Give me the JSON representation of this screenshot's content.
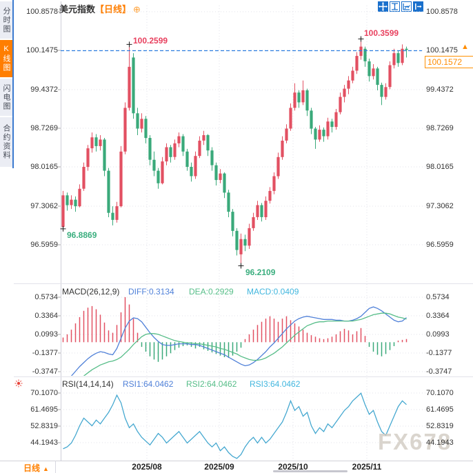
{
  "header": {
    "title": "美元指数",
    "period": "【日线】"
  },
  "icons": {
    "add": "⊕",
    "up_arrow": "▲",
    "period_arrow": "▲",
    "toolbar": [
      "crosshair-move-icon",
      "fit-vertical-icon",
      "fit-horizontal-icon",
      "export-icon"
    ],
    "indicator_settings": "sun-icon"
  },
  "sidebar": {
    "tabs": [
      {
        "label": "分时图",
        "active": false
      },
      {
        "label": "K线图",
        "active": true
      },
      {
        "label": "闪电图",
        "active": false
      },
      {
        "label": "合约资料",
        "active": false
      }
    ]
  },
  "price_axis": {
    "labels": [
      "100.8578",
      "100.1475",
      "99.4372",
      "98.7269",
      "98.0165",
      "97.3062",
      "96.5959"
    ],
    "dashed_price": "100.1475",
    "last_price": "100.1572"
  },
  "annotations": {
    "high_jul": "100.2599",
    "high_nov": "100.3599",
    "low_jul": "96.8869",
    "low_sep": "96.2109"
  },
  "macd_panel": {
    "title": "MACD(26,12,9)",
    "diff": "DIFF:0.3134",
    "dea": "DEA:0.2929",
    "macd": "MACD:0.0409",
    "axis_labels": [
      "0.5734",
      "0.3364",
      "0.0993",
      "-0.1377",
      "-0.3747"
    ]
  },
  "rsi_panel": {
    "title": "RSI(14,14,14)",
    "rsi1": "RSI1:64.0462",
    "rsi2": "RSI2:64.0462",
    "rsi3": "RSI3:64.0462",
    "axis_labels": [
      "70.1070",
      "61.4695",
      "52.8319",
      "44.1943"
    ]
  },
  "bottom_bar": {
    "period_label": "日线",
    "x_labels": [
      "2025/08",
      "2025/09",
      "2025/10",
      "2025/11"
    ]
  },
  "watermark": "FX678",
  "colors": {
    "up": "#e25062",
    "down": "#3aa97a",
    "accent_orange": "#ff7e00",
    "dashed_line": "#2b7de0",
    "diff_line": "#4f80d8",
    "dea_line": "#56bd88",
    "macd_text": "#41b6de",
    "rsi_line": "#45a8d0",
    "annotation_high": "#e8405e",
    "annotation_low": "#3aae7e",
    "grid": "#e0e0e8",
    "toolbar_blue": "#1a70cc"
  },
  "chart_data": [
    {
      "type": "candlestick",
      "title": "美元指数 日线 (US Dollar Index, daily)",
      "x_tick_labels": [
        "2025/08",
        "2025/09",
        "2025/10",
        "2025/11"
      ],
      "y_tick_labels": [
        100.8578,
        100.1475,
        99.4372,
        98.7269,
        98.0165,
        97.3062,
        96.5959
      ],
      "marked_high_1": 100.2599,
      "marked_high_2": 100.3599,
      "marked_low_1": 96.8869,
      "marked_low_2": 96.2109,
      "last_price": 100.1572,
      "reference_line": 100.1475,
      "ohlc": [
        [
          96.92,
          97.58,
          96.8869,
          97.5
        ],
        [
          97.5,
          97.55,
          97.22,
          97.32
        ],
        [
          97.32,
          97.5,
          97.25,
          97.42
        ],
        [
          97.42,
          97.48,
          97.2,
          97.3
        ],
        [
          97.3,
          97.7,
          97.28,
          97.62
        ],
        [
          97.62,
          98.1,
          97.58,
          98.02
        ],
        [
          98.02,
          98.42,
          97.95,
          98.36
        ],
        [
          98.36,
          98.65,
          98.28,
          98.56
        ],
        [
          98.56,
          98.62,
          98.3,
          98.4
        ],
        [
          98.4,
          98.6,
          98.32,
          98.52
        ],
        [
          98.52,
          98.55,
          97.85,
          97.95
        ],
        [
          97.95,
          98.0,
          97.1,
          97.18
        ],
        [
          97.18,
          97.3,
          96.95,
          97.05
        ],
        [
          97.05,
          97.38,
          97.0,
          97.3
        ],
        [
          97.3,
          98.4,
          97.28,
          98.3
        ],
        [
          98.3,
          99.2,
          98.25,
          99.1
        ],
        [
          99.1,
          100.2599,
          99.05,
          99.85
        ],
        [
          100.02,
          100.1,
          98.9,
          99.0
        ],
        [
          99.0,
          99.1,
          98.6,
          98.72
        ],
        [
          98.72,
          99.0,
          98.65,
          98.9
        ],
        [
          98.9,
          98.95,
          98.45,
          98.55
        ],
        [
          98.55,
          98.6,
          98.05,
          98.15
        ],
        [
          98.15,
          98.3,
          97.85,
          97.95
        ],
        [
          97.95,
          98.0,
          97.62,
          97.72
        ],
        [
          97.72,
          98.2,
          97.7,
          98.12
        ],
        [
          98.12,
          98.45,
          98.05,
          98.38
        ],
        [
          98.38,
          98.42,
          98.1,
          98.2
        ],
        [
          98.2,
          98.52,
          98.15,
          98.45
        ],
        [
          98.45,
          98.65,
          98.38,
          98.58
        ],
        [
          98.58,
          98.62,
          98.22,
          98.3
        ],
        [
          98.3,
          98.35,
          97.95,
          98.02
        ],
        [
          98.02,
          98.1,
          97.75,
          97.85
        ],
        [
          97.85,
          98.3,
          97.8,
          98.22
        ],
        [
          98.22,
          98.58,
          98.18,
          98.5
        ],
        [
          98.5,
          98.68,
          98.42,
          98.6
        ],
        [
          98.6,
          98.62,
          98.22,
          98.32
        ],
        [
          98.32,
          98.38,
          97.95,
          98.05
        ],
        [
          98.05,
          98.1,
          97.68,
          97.78
        ],
        [
          97.78,
          97.98,
          97.72,
          97.9
        ],
        [
          97.9,
          97.92,
          97.45,
          97.55
        ],
        [
          97.55,
          97.6,
          97.1,
          97.2
        ],
        [
          97.2,
          97.25,
          96.75,
          96.85
        ],
        [
          96.85,
          96.9,
          96.4,
          96.5
        ],
        [
          96.42,
          96.8,
          96.2109,
          96.7
        ],
        [
          96.7,
          96.78,
          96.48,
          96.58
        ],
        [
          96.58,
          96.98,
          96.52,
          96.9
        ],
        [
          96.9,
          97.18,
          96.85,
          97.1
        ],
        [
          97.1,
          97.4,
          97.05,
          97.32
        ],
        [
          97.32,
          97.36,
          97.02,
          97.1
        ],
        [
          97.1,
          97.48,
          97.05,
          97.4
        ],
        [
          97.4,
          97.65,
          97.35,
          97.58
        ],
        [
          97.58,
          97.92,
          97.52,
          97.85
        ],
        [
          97.85,
          98.28,
          97.8,
          98.2
        ],
        [
          98.2,
          98.58,
          98.15,
          98.5
        ],
        [
          98.5,
          98.8,
          98.45,
          98.72
        ],
        [
          98.72,
          99.18,
          98.68,
          99.1
        ],
        [
          99.1,
          99.55,
          99.05,
          99.38
        ],
        [
          99.38,
          99.42,
          99.1,
          99.2
        ],
        [
          99.2,
          99.6,
          99.15,
          99.42
        ],
        [
          99.42,
          99.45,
          98.95,
          99.05
        ],
        [
          99.05,
          99.1,
          98.62,
          98.72
        ],
        [
          98.72,
          98.75,
          98.35,
          98.52
        ],
        [
          98.52,
          98.78,
          98.48,
          98.7
        ],
        [
          98.7,
          98.74,
          98.48,
          98.58
        ],
        [
          98.58,
          98.92,
          98.52,
          98.85
        ],
        [
          98.85,
          98.9,
          98.65,
          98.75
        ],
        [
          98.75,
          99.08,
          98.7,
          99.02
        ],
        [
          99.02,
          99.38,
          98.98,
          99.3
        ],
        [
          99.3,
          99.52,
          99.2,
          99.45
        ],
        [
          99.45,
          99.68,
          99.35,
          99.6
        ],
        [
          99.6,
          99.85,
          99.55,
          99.78
        ],
        [
          99.78,
          100.12,
          99.72,
          100.05
        ],
        [
          100.05,
          100.3599,
          99.98,
          100.22
        ],
        [
          100.18,
          100.22,
          99.85,
          99.95
        ],
        [
          99.95,
          100.0,
          99.58,
          99.68
        ],
        [
          99.68,
          99.9,
          99.62,
          99.82
        ],
        [
          99.82,
          99.85,
          99.42,
          99.52
        ],
        [
          99.52,
          99.56,
          99.15,
          99.3
        ],
        [
          99.3,
          99.55,
          99.25,
          99.48
        ],
        [
          99.48,
          99.95,
          99.44,
          99.88
        ],
        [
          99.88,
          100.18,
          99.82,
          100.1
        ],
        [
          100.1,
          100.14,
          99.85,
          99.92
        ],
        [
          99.92,
          100.26,
          99.88,
          100.18
        ],
        [
          100.18,
          100.22,
          100.02,
          100.1572
        ]
      ]
    },
    {
      "type": "bar",
      "name": "MACD(26,12,9)",
      "diff_last": 0.3134,
      "dea_last": 0.2929,
      "macd_last": 0.0409,
      "y_tick_labels": [
        0.5734,
        0.3364,
        0.0993,
        -0.1377,
        -0.3747
      ],
      "histogram": [
        0.06,
        0.1,
        0.16,
        0.24,
        0.32,
        0.4,
        0.44,
        0.46,
        0.42,
        0.35,
        0.25,
        0.15,
        0.12,
        0.22,
        0.38,
        0.5734,
        0.48,
        0.3,
        0.12,
        -0.06,
        -0.12,
        -0.18,
        -0.22,
        -0.25,
        -0.22,
        -0.18,
        -0.14,
        -0.1,
        -0.07,
        -0.05,
        -0.04,
        -0.06,
        -0.08,
        -0.06,
        -0.09,
        -0.11,
        -0.13,
        -0.15,
        -0.17,
        -0.19,
        -0.2,
        -0.17,
        -0.12,
        -0.07,
        0.04,
        0.1,
        0.16,
        0.22,
        0.26,
        0.3,
        0.33,
        0.3,
        0.26,
        0.3,
        0.33,
        0.28,
        0.24,
        0.2,
        0.16,
        0.12,
        0.09,
        0.07,
        0.05,
        0.04,
        0.05,
        0.07,
        0.1,
        0.14,
        0.17,
        0.15,
        0.1,
        0.14,
        0.18,
        0.08,
        -0.06,
        -0.12,
        -0.16,
        -0.18,
        -0.15,
        -0.1,
        -0.05,
        0.02,
        0.03,
        0.0409
      ],
      "diff_series": [
        -0.55,
        -0.49,
        -0.43,
        -0.37,
        -0.31,
        -0.26,
        -0.21,
        -0.17,
        -0.14,
        -0.12,
        -0.13,
        -0.15,
        -0.16,
        -0.08,
        0.05,
        0.18,
        0.27,
        0.31,
        0.3,
        0.26,
        0.19,
        0.12,
        0.06,
        0.01,
        -0.03,
        -0.04,
        -0.04,
        -0.03,
        -0.02,
        -0.02,
        -0.02,
        -0.03,
        -0.03,
        -0.04,
        -0.06,
        -0.08,
        -0.1,
        -0.12,
        -0.14,
        -0.16,
        -0.19,
        -0.22,
        -0.25,
        -0.28,
        -0.3,
        -0.29,
        -0.26,
        -0.22,
        -0.17,
        -0.12,
        -0.06,
        -0.01,
        0.05,
        0.11,
        0.17,
        0.22,
        0.27,
        0.3,
        0.32,
        0.33,
        0.32,
        0.31,
        0.3,
        0.29,
        0.29,
        0.29,
        0.28,
        0.28,
        0.27,
        0.27,
        0.28,
        0.3,
        0.33,
        0.38,
        0.43,
        0.45,
        0.43,
        0.4,
        0.36,
        0.32,
        0.28,
        0.26,
        0.27,
        0.3134
      ],
      "dea_series": [
        -0.63,
        -0.59,
        -0.55,
        -0.51,
        -0.47,
        -0.43,
        -0.39,
        -0.35,
        -0.32,
        -0.29,
        -0.27,
        -0.25,
        -0.24,
        -0.22,
        -0.19,
        -0.14,
        -0.09,
        -0.03,
        0.02,
        0.07,
        0.1,
        0.11,
        0.11,
        0.1,
        0.08,
        0.06,
        0.04,
        0.02,
        0.01,
        0.0,
        -0.01,
        -0.01,
        -0.02,
        -0.02,
        -0.03,
        -0.04,
        -0.05,
        -0.06,
        -0.08,
        -0.09,
        -0.11,
        -0.13,
        -0.15,
        -0.18,
        -0.2,
        -0.22,
        -0.23,
        -0.23,
        -0.22,
        -0.2,
        -0.17,
        -0.14,
        -0.1,
        -0.06,
        -0.01,
        0.04,
        0.09,
        0.13,
        0.17,
        0.21,
        0.23,
        0.25,
        0.26,
        0.26,
        0.27,
        0.27,
        0.27,
        0.27,
        0.27,
        0.27,
        0.27,
        0.28,
        0.29,
        0.31,
        0.33,
        0.35,
        0.36,
        0.37,
        0.37,
        0.36,
        0.34,
        0.32,
        0.31,
        0.2929
      ]
    },
    {
      "type": "line",
      "name": "RSI(14,14,14)",
      "y_tick_labels": [
        70.107,
        61.4695,
        52.8319,
        44.1943
      ],
      "values": [
        41,
        42,
        44,
        48,
        53,
        57,
        55,
        53,
        56,
        54,
        57,
        60,
        64,
        69,
        65,
        57,
        52,
        54,
        50,
        47,
        45,
        43,
        46,
        49,
        47,
        44,
        46,
        48,
        50,
        47,
        44,
        46,
        48,
        50,
        47,
        44,
        42,
        44,
        40,
        42,
        39,
        37,
        36,
        38,
        42,
        45,
        47,
        44,
        47,
        44,
        46,
        49,
        52,
        55,
        60,
        66,
        61,
        63,
        58,
        60,
        53,
        49,
        52,
        50,
        54,
        52,
        55,
        58,
        61,
        63,
        66,
        68,
        70,
        64,
        59,
        61,
        55,
        50,
        48,
        53,
        58,
        63,
        66,
        64.0462
      ]
    }
  ]
}
